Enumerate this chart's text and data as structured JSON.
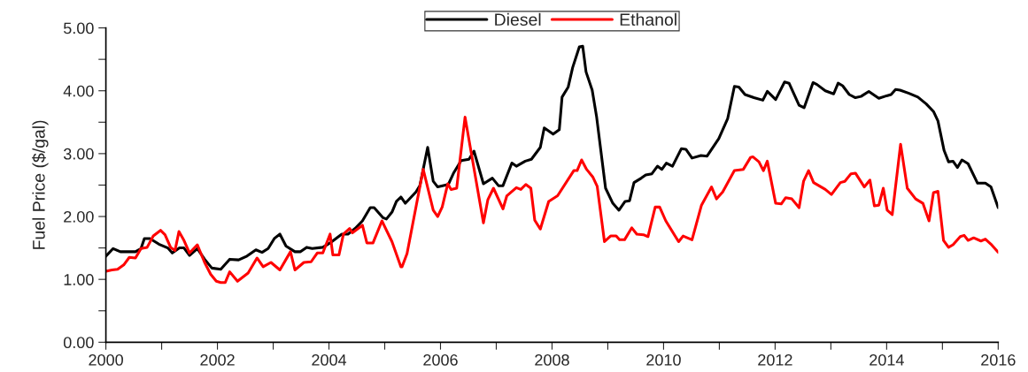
{
  "chart_data": {
    "type": "line",
    "ylabel": "Fuel Price ($/gal)",
    "xlim": [
      2000,
      2016
    ],
    "ylim": [
      0,
      5
    ],
    "xticks": [
      2000,
      {
        "value": 2001,
        "label": null
      },
      2002,
      {
        "value": 2003,
        "label": null
      },
      2004,
      {
        "value": 2005,
        "label": null
      },
      2006,
      {
        "value": 2007,
        "label": null
      },
      2008,
      {
        "value": 2009,
        "label": null
      },
      2010,
      {
        "value": 2011,
        "label": null
      },
      2012,
      {
        "value": 2013,
        "label": null
      },
      2014,
      {
        "value": 2015,
        "label": null
      },
      2016
    ],
    "yticks": [
      {
        "value": 0,
        "label": "0.00"
      },
      {
        "value": 0.5,
        "label": null
      },
      {
        "value": 1,
        "label": "1.00"
      },
      {
        "value": 1.5,
        "label": null
      },
      {
        "value": 2,
        "label": "2.00"
      },
      {
        "value": 2.5,
        "label": null
      },
      {
        "value": 3,
        "label": "3.00"
      },
      {
        "value": 3.5,
        "label": null
      },
      {
        "value": 4,
        "label": "4.00"
      },
      {
        "value": 4.5,
        "label": null
      },
      {
        "value": 5,
        "label": "5.00"
      }
    ],
    "grid": false,
    "legend": "top",
    "marker": "none",
    "line_style": "solid",
    "series": [
      {
        "name": "Diesel",
        "color": "#000000",
        "x": [
          2000.0,
          2000.13,
          2000.26,
          2000.53,
          2000.63,
          2000.69,
          2000.79,
          2000.95,
          2001.11,
          2001.19,
          2001.32,
          2001.4,
          2001.5,
          2001.64,
          2001.77,
          2001.9,
          2002.06,
          2002.22,
          2002.38,
          2002.53,
          2002.69,
          2002.8,
          2002.91,
          2003.02,
          2003.12,
          2003.23,
          2003.39,
          2003.49,
          2003.6,
          2003.7,
          2003.89,
          2004.02,
          2004.23,
          2004.34,
          2004.47,
          2004.6,
          2004.74,
          2004.81,
          2004.97,
          2005.03,
          2005.13,
          2005.21,
          2005.29,
          2005.37,
          2005.56,
          2005.63,
          2005.77,
          2005.87,
          2005.95,
          2006.14,
          2006.24,
          2006.37,
          2006.51,
          2006.6,
          2006.77,
          2006.93,
          2007.04,
          2007.12,
          2007.28,
          2007.36,
          2007.52,
          2007.63,
          2007.79,
          2007.86,
          2008.02,
          2008.13,
          2008.18,
          2008.29,
          2008.37,
          2008.49,
          2008.55,
          2008.61,
          2008.72,
          2008.8,
          2008.96,
          2009.09,
          2009.2,
          2009.31,
          2009.39,
          2009.47,
          2009.6,
          2009.68,
          2009.79,
          2009.89,
          2009.97,
          2010.05,
          2010.16,
          2010.32,
          2010.4,
          2010.51,
          2010.67,
          2010.78,
          2010.99,
          2011.15,
          2011.27,
          2011.35,
          2011.46,
          2011.62,
          2011.78,
          2011.86,
          2012.01,
          2012.17,
          2012.25,
          2012.43,
          2012.52,
          2012.68,
          2012.75,
          2012.9,
          2013.05,
          2013.13,
          2013.21,
          2013.33,
          2013.44,
          2013.54,
          2013.68,
          2013.86,
          2014.0,
          2014.08,
          2014.16,
          2014.24,
          2014.4,
          2014.56,
          2014.71,
          2014.84,
          2014.92,
          2015.03,
          2015.11,
          2015.19,
          2015.27,
          2015.35,
          2015.46,
          2015.63,
          2015.77,
          2015.87,
          2016.0
        ],
        "values": [
          1.37,
          1.49,
          1.44,
          1.44,
          1.49,
          1.65,
          1.65,
          1.56,
          1.5,
          1.42,
          1.5,
          1.5,
          1.38,
          1.49,
          1.32,
          1.18,
          1.16,
          1.32,
          1.31,
          1.37,
          1.47,
          1.43,
          1.49,
          1.65,
          1.72,
          1.53,
          1.44,
          1.44,
          1.51,
          1.49,
          1.51,
          1.58,
          1.72,
          1.72,
          1.81,
          1.93,
          2.14,
          2.14,
          1.98,
          1.96,
          2.07,
          2.24,
          2.31,
          2.21,
          2.39,
          2.49,
          3.1,
          2.56,
          2.47,
          2.51,
          2.7,
          2.89,
          2.91,
          3.04,
          2.52,
          2.61,
          2.49,
          2.49,
          2.85,
          2.8,
          2.88,
          2.91,
          3.1,
          3.41,
          3.31,
          3.38,
          3.9,
          4.06,
          4.37,
          4.7,
          4.71,
          4.3,
          4.01,
          3.58,
          2.45,
          2.21,
          2.1,
          2.24,
          2.25,
          2.54,
          2.61,
          2.66,
          2.68,
          2.8,
          2.75,
          2.85,
          2.8,
          3.08,
          3.07,
          2.93,
          2.97,
          2.96,
          3.24,
          3.56,
          4.07,
          4.06,
          3.94,
          3.89,
          3.85,
          3.99,
          3.86,
          4.14,
          4.12,
          3.77,
          3.73,
          4.13,
          4.1,
          4.0,
          3.95,
          4.12,
          4.08,
          3.94,
          3.89,
          3.91,
          3.99,
          3.88,
          3.92,
          3.94,
          4.02,
          4.01,
          3.96,
          3.9,
          3.79,
          3.67,
          3.52,
          3.05,
          2.87,
          2.88,
          2.78,
          2.9,
          2.84,
          2.53,
          2.53,
          2.47,
          2.14
        ]
      },
      {
        "name": "Ethanol",
        "color": "#ff0000",
        "x": [
          2000.0,
          2000.11,
          2000.21,
          2000.32,
          2000.42,
          2000.53,
          2000.63,
          2000.74,
          2000.85,
          2000.98,
          2001.06,
          2001.16,
          2001.24,
          2001.31,
          2001.4,
          2001.5,
          2001.64,
          2001.77,
          2001.88,
          2001.98,
          2002.06,
          2002.14,
          2002.22,
          2002.36,
          2002.55,
          2002.71,
          2002.82,
          2002.96,
          2003.12,
          2003.31,
          2003.39,
          2003.55,
          2003.68,
          2003.79,
          2003.89,
          2004.02,
          2004.07,
          2004.18,
          2004.26,
          2004.37,
          2004.42,
          2004.6,
          2004.68,
          2004.79,
          2004.95,
          2005.13,
          2005.29,
          2005.31,
          2005.4,
          2005.69,
          2005.87,
          2005.95,
          2006.03,
          2006.13,
          2006.19,
          2006.29,
          2006.44,
          2006.77,
          2006.85,
          2006.95,
          2007.12,
          2007.19,
          2007.36,
          2007.44,
          2007.53,
          2007.62,
          2007.69,
          2007.79,
          2007.94,
          2008.1,
          2008.39,
          2008.45,
          2008.53,
          2008.62,
          2008.73,
          2008.81,
          2008.94,
          2009.05,
          2009.15,
          2009.21,
          2009.3,
          2009.43,
          2009.52,
          2009.64,
          2009.72,
          2009.85,
          2009.93,
          2010.04,
          2010.27,
          2010.35,
          2010.51,
          2010.68,
          2010.86,
          2010.95,
          2011.06,
          2011.27,
          2011.43,
          2011.56,
          2011.6,
          2011.71,
          2011.79,
          2011.86,
          2012.01,
          2012.11,
          2012.19,
          2012.3,
          2012.43,
          2012.51,
          2012.6,
          2012.69,
          2012.9,
          2013.01,
          2013.17,
          2013.25,
          2013.36,
          2013.44,
          2013.6,
          2013.7,
          2013.78,
          2013.86,
          2013.94,
          2014.01,
          2014.1,
          2014.25,
          2014.37,
          2014.52,
          2014.65,
          2014.76,
          2014.84,
          2014.92,
          2015.02,
          2015.11,
          2015.19,
          2015.32,
          2015.39,
          2015.46,
          2015.56,
          2015.69,
          2015.77,
          2015.87,
          2016.0
        ],
        "values": [
          1.13,
          1.15,
          1.16,
          1.23,
          1.35,
          1.34,
          1.49,
          1.51,
          1.69,
          1.78,
          1.71,
          1.51,
          1.46,
          1.76,
          1.62,
          1.42,
          1.55,
          1.27,
          1.08,
          0.97,
          0.95,
          0.95,
          1.12,
          0.97,
          1.1,
          1.34,
          1.2,
          1.27,
          1.15,
          1.44,
          1.15,
          1.27,
          1.28,
          1.42,
          1.42,
          1.72,
          1.39,
          1.39,
          1.72,
          1.81,
          1.74,
          1.86,
          1.58,
          1.58,
          1.93,
          1.6,
          1.2,
          1.2,
          1.41,
          2.75,
          2.1,
          2.0,
          2.15,
          2.52,
          2.43,
          2.45,
          3.58,
          1.9,
          2.27,
          2.45,
          2.12,
          2.33,
          2.46,
          2.43,
          2.51,
          2.45,
          1.94,
          1.8,
          2.24,
          2.33,
          2.73,
          2.73,
          2.9,
          2.75,
          2.63,
          2.48,
          1.6,
          1.69,
          1.69,
          1.63,
          1.63,
          1.82,
          1.72,
          1.71,
          1.68,
          2.15,
          2.15,
          1.93,
          1.6,
          1.69,
          1.63,
          2.18,
          2.47,
          2.28,
          2.39,
          2.73,
          2.75,
          2.94,
          2.95,
          2.87,
          2.73,
          2.88,
          2.21,
          2.2,
          2.3,
          2.28,
          2.14,
          2.56,
          2.73,
          2.54,
          2.43,
          2.35,
          2.54,
          2.56,
          2.68,
          2.69,
          2.47,
          2.58,
          2.17,
          2.18,
          2.45,
          2.1,
          2.03,
          3.15,
          2.45,
          2.28,
          2.21,
          1.93,
          2.38,
          2.4,
          1.62,
          1.51,
          1.55,
          1.68,
          1.7,
          1.62,
          1.66,
          1.61,
          1.64,
          1.56,
          1.43
        ]
      }
    ]
  }
}
